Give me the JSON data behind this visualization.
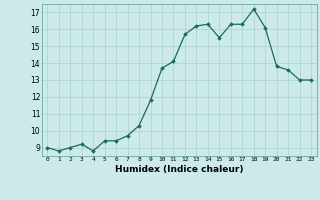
{
  "x": [
    0,
    1,
    2,
    3,
    4,
    5,
    6,
    7,
    8,
    9,
    10,
    11,
    12,
    13,
    14,
    15,
    16,
    17,
    18,
    19,
    20,
    21,
    22,
    23
  ],
  "y": [
    9.0,
    8.8,
    9.0,
    9.2,
    8.8,
    9.4,
    9.4,
    9.7,
    10.3,
    11.8,
    13.7,
    14.1,
    15.7,
    16.2,
    16.3,
    15.5,
    16.3,
    16.3,
    17.2,
    16.1,
    13.8,
    13.6,
    13.0,
    13.0
  ],
  "xlim": [
    -0.5,
    23.5
  ],
  "ylim": [
    8.5,
    17.5
  ],
  "yticks": [
    9,
    10,
    11,
    12,
    13,
    14,
    15,
    16,
    17
  ],
  "xticks": [
    0,
    1,
    2,
    3,
    4,
    5,
    6,
    7,
    8,
    9,
    10,
    11,
    12,
    13,
    14,
    15,
    16,
    17,
    18,
    19,
    20,
    21,
    22,
    23
  ],
  "xlabel": "Humidex (Indice chaleur)",
  "line_color": "#1a6b5a",
  "marker": "D",
  "marker_size": 1.8,
  "bg_color": "#cdeaea",
  "grid_color": "#b0d4d4",
  "grid_color_minor": "#c8e6e6"
}
